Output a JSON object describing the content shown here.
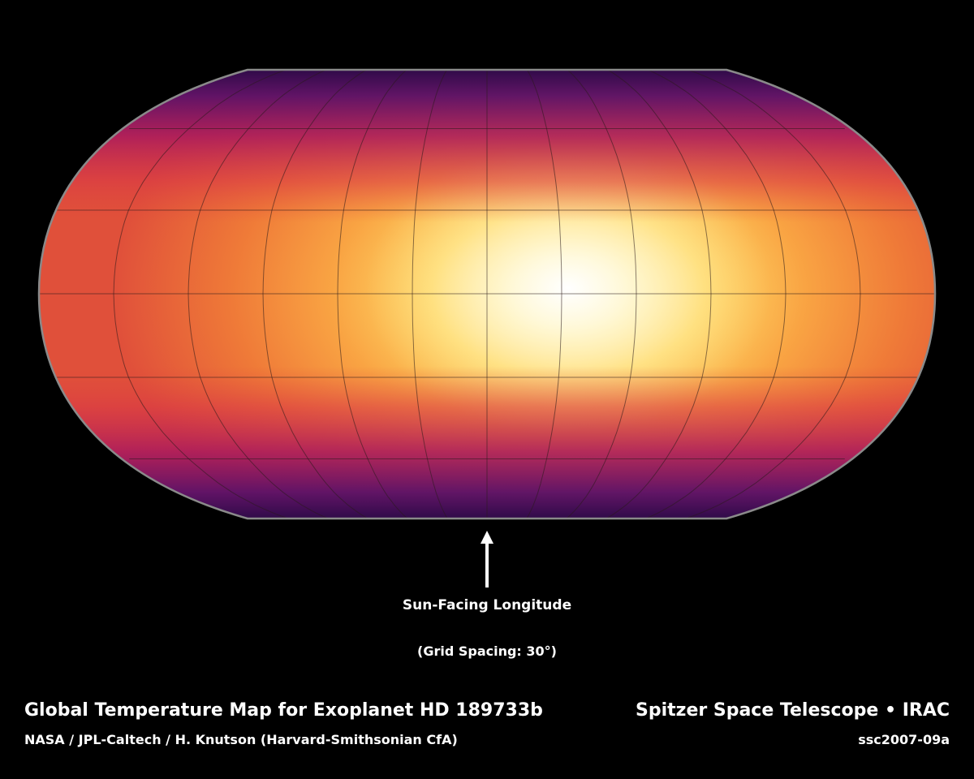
{
  "map": {
    "projection": "robinson",
    "grid_spacing_deg": 30,
    "hotspot_longitude_deg": 30,
    "sun_facing_longitude_deg": 0,
    "colors": {
      "background": "#000000",
      "hottest": "#fffdf2",
      "hot": "#ffe070",
      "warm": "#f58a3c",
      "mild": "#e03a3a",
      "cool": "#a8145e",
      "coldest": "#3a0a44",
      "outline": "#8a8a8a",
      "grid": "#2a1a1a"
    }
  },
  "arrow_label": "Sun-Facing Longitude",
  "grid_label": "(Grid Spacing: 30°)",
  "title": "Global Temperature Map for Exoplanet HD 189733b",
  "credit": "NASA / JPL-Caltech / H. Knutson (Harvard-Smithsonian CfA)",
  "mission": "Spitzer Space Telescope • IRAC",
  "image_id": "ssc2007-09a"
}
